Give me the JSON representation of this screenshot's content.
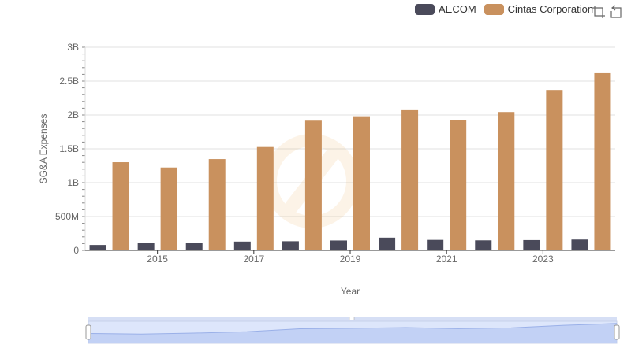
{
  "legend": {
    "items": [
      {
        "label": "AECOM",
        "color": "#4a4a5a"
      },
      {
        "label": "Cintas Corporation",
        "color": "#c9915e"
      }
    ]
  },
  "toolbox": {
    "zoom_icon": "zoom-select-icon",
    "restore_icon": "restore-icon"
  },
  "chart_data": {
    "type": "bar",
    "xlabel": "Year",
    "ylabel": "SG&A Expenses",
    "categories": [
      "2014",
      "2015",
      "2016",
      "2017",
      "2018",
      "2019",
      "2020",
      "2021",
      "2022",
      "2023",
      "2024"
    ],
    "x_tick_labels": [
      "2015",
      "2017",
      "2019",
      "2021",
      "2023"
    ],
    "y_ticks": [
      {
        "value": 0,
        "label": "0"
      },
      {
        "value": 500000000,
        "label": "500M"
      },
      {
        "value": 1000000000,
        "label": "1B"
      },
      {
        "value": 1500000000,
        "label": "1.5B"
      },
      {
        "value": 2000000000,
        "label": "2B"
      },
      {
        "value": 2500000000,
        "label": "2.5B"
      },
      {
        "value": 3000000000,
        "label": "3B"
      }
    ],
    "ylim": [
      0,
      3000000000
    ],
    "grid": true,
    "legend_position": "top-right",
    "series": [
      {
        "name": "AECOM",
        "color": "#4a4a5a",
        "values": [
          80000000,
          115000000,
          113000000,
          130000000,
          135000000,
          146000000,
          188000000,
          155000000,
          148000000,
          152000000,
          160000000
        ]
      },
      {
        "name": "Cintas Corporation",
        "color": "#c9915e",
        "values": [
          1302000000,
          1224000000,
          1348000000,
          1527000000,
          1916000000,
          1981000000,
          2071000000,
          1930000000,
          2044000000,
          2370000000,
          2617000000
        ]
      }
    ],
    "data_zoom": {
      "start": 0,
      "end": 100
    }
  }
}
